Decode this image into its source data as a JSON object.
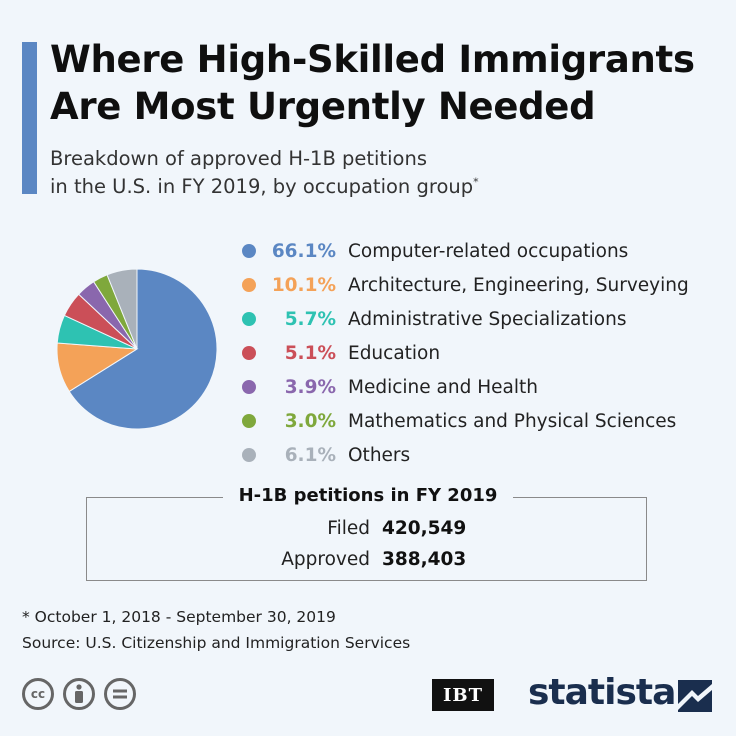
{
  "header": {
    "title_line1": "Where High-Skilled Immigrants",
    "title_line2": "Are Most Urgently Needed",
    "subtitle_line1": "Breakdown of approved H-1B petitions",
    "subtitle_line2": "in the U.S. in FY 2019, by occupation group",
    "subtitle_marker": "*"
  },
  "chart_data": {
    "type": "pie",
    "title": "Where High-Skilled Immigrants Are Most Urgently Needed",
    "subtitle": "Breakdown of approved H-1B petitions in the U.S. in FY 2019, by occupation group*",
    "unit": "%",
    "start_angle_deg": 0,
    "direction": "clockwise",
    "slices": [
      {
        "label": "Computer-related occupations",
        "value": 66.1,
        "display": "66.1%",
        "color": "#5b87c3"
      },
      {
        "label": "Architecture, Engineering, Surveying",
        "value": 10.1,
        "display": "10.1%",
        "color": "#f4a258"
      },
      {
        "label": "Administrative Specializations",
        "value": 5.7,
        "display": "5.7%",
        "color": "#2ec2b2"
      },
      {
        "label": "Education",
        "value": 5.1,
        "display": "5.1%",
        "color": "#cb4f58"
      },
      {
        "label": "Medicine and Health",
        "value": 3.9,
        "display": "3.9%",
        "color": "#8a67ad"
      },
      {
        "label": "Mathematics and Physical Sciences",
        "value": 3.0,
        "display": "3.0%",
        "color": "#7fa83c"
      },
      {
        "label": "Others",
        "value": 6.1,
        "display": "6.1%",
        "color": "#a9b1ba"
      }
    ],
    "legend_position": "right"
  },
  "stats_box": {
    "title": "H-1B petitions in FY 2019",
    "rows": [
      {
        "label": "Filed",
        "value": "420,549"
      },
      {
        "label": "Approved",
        "value": "388,403"
      }
    ]
  },
  "footer": {
    "footnote": "* October 1, 2018 - September 30, 2019",
    "source": "Source: U.S. Citizenship and Immigration Services",
    "license_icons": [
      "cc-icon",
      "attribution-icon",
      "no-derivatives-icon"
    ],
    "partner_logo": "IBT",
    "brand": "statista"
  },
  "colors": {
    "accent": "#5b87c3",
    "background": "#f1f6fb",
    "brand_navy": "#1a2e4e"
  }
}
